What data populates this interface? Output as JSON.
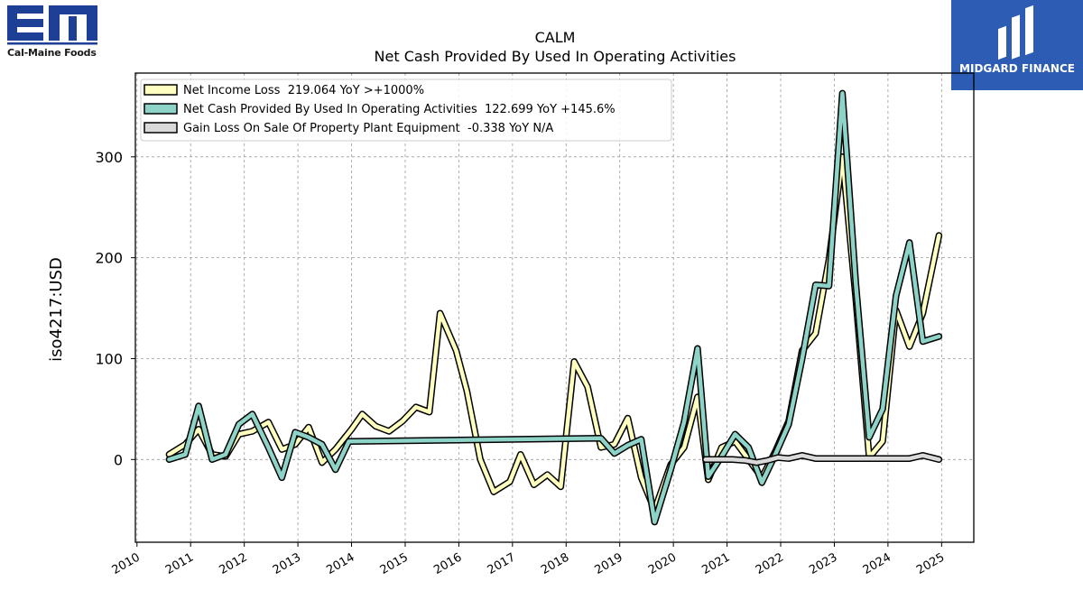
{
  "company_logo": {
    "mark": "EM",
    "name": "Cal-Maine Foods",
    "color": "#1e3f96"
  },
  "partner_badge": {
    "name": "MIDGARD FINANCE",
    "background": "#2c5cb4"
  },
  "chart_data": {
    "type": "line",
    "title": "CALM",
    "subtitle": "Net Cash Provided By Used In Operating Activities",
    "ylabel": "iso4217:USD",
    "xlim": [
      2009.97,
      2025.6
    ],
    "ylim": [
      -82,
      383
    ],
    "yticks": [
      0,
      100,
      200,
      300
    ],
    "xticks": [
      2010,
      2011,
      2012,
      2013,
      2014,
      2015,
      2016,
      2017,
      2018,
      2019,
      2020,
      2021,
      2022,
      2023,
      2024,
      2025
    ],
    "grid": true,
    "legend_position": "top-left",
    "series": [
      {
        "name": "Net Income Loss",
        "legend_text": "Net Income Loss  219.064 YoY >+1000%",
        "color": "#ffffbf",
        "points": [
          [
            2010.6,
            5
          ],
          [
            2010.9,
            15
          ],
          [
            2011.15,
            30
          ],
          [
            2011.4,
            5
          ],
          [
            2011.65,
            3
          ],
          [
            2011.9,
            25
          ],
          [
            2012.15,
            28
          ],
          [
            2012.45,
            37
          ],
          [
            2012.7,
            10
          ],
          [
            2012.95,
            15
          ],
          [
            2013.2,
            32
          ],
          [
            2013.45,
            -3
          ],
          [
            2013.7,
            10
          ],
          [
            2014.0,
            30
          ],
          [
            2014.2,
            45
          ],
          [
            2014.45,
            33
          ],
          [
            2014.7,
            28
          ],
          [
            2014.95,
            38
          ],
          [
            2015.2,
            52
          ],
          [
            2015.45,
            47
          ],
          [
            2015.65,
            145
          ],
          [
            2015.95,
            108
          ],
          [
            2016.15,
            68
          ],
          [
            2016.4,
            0
          ],
          [
            2016.65,
            -32
          ],
          [
            2016.95,
            -22
          ],
          [
            2017.15,
            5
          ],
          [
            2017.4,
            -25
          ],
          [
            2017.65,
            -15
          ],
          [
            2017.9,
            -27
          ],
          [
            2018.15,
            97
          ],
          [
            2018.4,
            72
          ],
          [
            2018.65,
            12
          ],
          [
            2018.9,
            15
          ],
          [
            2019.15,
            41
          ],
          [
            2019.4,
            -18
          ],
          [
            2019.65,
            -50
          ],
          [
            2019.95,
            -5
          ],
          [
            2020.2,
            12
          ],
          [
            2020.45,
            62
          ],
          [
            2020.65,
            -20
          ],
          [
            2020.9,
            12
          ],
          [
            2021.15,
            18
          ],
          [
            2021.4,
            0
          ],
          [
            2021.65,
            -18
          ],
          [
            2021.9,
            8
          ],
          [
            2022.15,
            38
          ],
          [
            2022.4,
            108
          ],
          [
            2022.65,
            125
          ],
          [
            2022.9,
            198
          ],
          [
            2023.15,
            300
          ],
          [
            2023.4,
            160
          ],
          [
            2023.65,
            2
          ],
          [
            2023.9,
            18
          ],
          [
            2024.15,
            148
          ],
          [
            2024.4,
            112
          ],
          [
            2024.65,
            145
          ],
          [
            2024.95,
            222
          ]
        ]
      },
      {
        "name": "Net Cash Provided By Used In Operating Activities",
        "legend_text": "Net Cash Provided By Used In Operating Activities  122.699 YoY +145.6%",
        "color": "#8dd3c7",
        "points": [
          [
            2010.6,
            0
          ],
          [
            2010.9,
            5
          ],
          [
            2011.15,
            53
          ],
          [
            2011.4,
            0
          ],
          [
            2011.65,
            5
          ],
          [
            2011.9,
            35
          ],
          [
            2012.15,
            45
          ],
          [
            2012.45,
            12
          ],
          [
            2012.7,
            -18
          ],
          [
            2012.95,
            27
          ],
          [
            2013.2,
            22
          ],
          [
            2013.45,
            15
          ],
          [
            2013.7,
            -10
          ],
          [
            2013.95,
            18
          ],
          [
            2018.65,
            21
          ],
          [
            2018.9,
            6
          ],
          [
            2019.15,
            14
          ],
          [
            2019.4,
            20
          ],
          [
            2019.65,
            -62
          ],
          [
            2019.95,
            -10
          ],
          [
            2020.2,
            37
          ],
          [
            2020.45,
            110
          ],
          [
            2020.65,
            -17
          ],
          [
            2020.9,
            3
          ],
          [
            2021.15,
            25
          ],
          [
            2021.4,
            12
          ],
          [
            2021.65,
            -23
          ],
          [
            2021.9,
            5
          ],
          [
            2022.15,
            35
          ],
          [
            2022.4,
            100
          ],
          [
            2022.65,
            173
          ],
          [
            2022.9,
            172
          ],
          [
            2023.15,
            363
          ],
          [
            2023.4,
            175
          ],
          [
            2023.65,
            22
          ],
          [
            2023.9,
            50
          ],
          [
            2024.15,
            162
          ],
          [
            2024.4,
            215
          ],
          [
            2024.65,
            117
          ],
          [
            2024.95,
            122
          ]
        ]
      },
      {
        "name": "Gain Loss On Sale Of Property Plant Equipment",
        "legend_text": "Gain Loss On Sale Of Property Plant Equipment  -0.338 YoY N/A",
        "color": "#d9d9d9",
        "points": [
          [
            2020.6,
            0
          ],
          [
            2020.85,
            0
          ],
          [
            2021.1,
            0
          ],
          [
            2021.35,
            -1
          ],
          [
            2021.55,
            -3
          ],
          [
            2021.75,
            -1
          ],
          [
            2021.95,
            2
          ],
          [
            2022.15,
            1
          ],
          [
            2022.4,
            4
          ],
          [
            2022.65,
            1
          ],
          [
            2022.9,
            1
          ],
          [
            2023.15,
            1
          ],
          [
            2023.4,
            1
          ],
          [
            2023.65,
            1
          ],
          [
            2023.9,
            1
          ],
          [
            2024.15,
            1
          ],
          [
            2024.4,
            1
          ],
          [
            2024.65,
            4
          ],
          [
            2024.95,
            0
          ]
        ]
      }
    ]
  }
}
